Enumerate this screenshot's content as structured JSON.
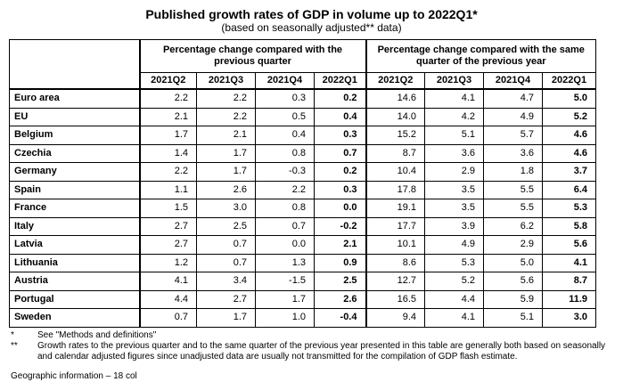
{
  "title": "Published growth rates of GDP in volume up to 2022Q1*",
  "subtitle": "(based on seasonally adjusted** data)",
  "table": {
    "group_headers": [
      "Percentage change compared with the previous quarter",
      "Percentage change compared with the same quarter of the previous year"
    ],
    "columns": [
      "2021Q2",
      "2021Q3",
      "2021Q4",
      "2022Q1",
      "2021Q2",
      "2021Q3",
      "2021Q4",
      "2022Q1"
    ],
    "rows": [
      {
        "country": "Euro area",
        "values": [
          "2.2",
          "2.2",
          "0.3",
          "0.2",
          "14.6",
          "4.1",
          "4.7",
          "5.0"
        ]
      },
      {
        "country": "EU",
        "values": [
          "2.1",
          "2.2",
          "0.5",
          "0.4",
          "14.0",
          "4.2",
          "4.9",
          "5.2"
        ]
      },
      {
        "country": "Belgium",
        "values": [
          "1.7",
          "2.1",
          "0.4",
          "0.3",
          "15.2",
          "5.1",
          "5.7",
          "4.6"
        ]
      },
      {
        "country": "Czechia",
        "values": [
          "1.4",
          "1.7",
          "0.8",
          "0.7",
          "8.7",
          "3.6",
          "3.6",
          "4.6"
        ]
      },
      {
        "country": "Germany",
        "values": [
          "2.2",
          "1.7",
          "-0.3",
          "0.2",
          "10.4",
          "2.9",
          "1.8",
          "3.7"
        ]
      },
      {
        "country": "Spain",
        "values": [
          "1.1",
          "2.6",
          "2.2",
          "0.3",
          "17.8",
          "3.5",
          "5.5",
          "6.4"
        ]
      },
      {
        "country": "France",
        "values": [
          "1.5",
          "3.0",
          "0.8",
          "0.0",
          "19.1",
          "3.5",
          "5.5",
          "5.3"
        ]
      },
      {
        "country": "Italy",
        "values": [
          "2.7",
          "2.5",
          "0.7",
          "-0.2",
          "17.7",
          "3.9",
          "6.2",
          "5.8"
        ]
      },
      {
        "country": "Latvia",
        "values": [
          "2.7",
          "0.7",
          "0.0",
          "2.1",
          "10.1",
          "4.9",
          "2.9",
          "5.6"
        ]
      },
      {
        "country": "Lithuania",
        "values": [
          "1.2",
          "0.7",
          "1.3",
          "0.9",
          "8.6",
          "5.3",
          "5.0",
          "4.1"
        ]
      },
      {
        "country": "Austria",
        "values": [
          "4.1",
          "3.4",
          "-1.5",
          "2.5",
          "12.7",
          "5.2",
          "5.6",
          "8.7"
        ]
      },
      {
        "country": "Portugal",
        "values": [
          "4.4",
          "2.7",
          "1.7",
          "2.6",
          "16.5",
          "4.4",
          "5.9",
          "11.9"
        ]
      },
      {
        "country": "Sweden",
        "values": [
          "0.7",
          "1.7",
          "1.0",
          "-0.4",
          "9.4",
          "4.1",
          "5.1",
          "3.0"
        ]
      }
    ]
  },
  "notes": [
    {
      "mark": "*",
      "text": "See \"Methods and definitions\""
    },
    {
      "mark": "**",
      "text": "Growth rates to the previous quarter and to the same quarter of the previous year presented in this table are generally both based on seasonally and calendar adjusted figures since unadjusted data are usually not transmitted for the compilation of GDP flash estimate."
    }
  ],
  "cutoff_text": "Geo­graphic inf­ormat­ion – 18 col"
}
